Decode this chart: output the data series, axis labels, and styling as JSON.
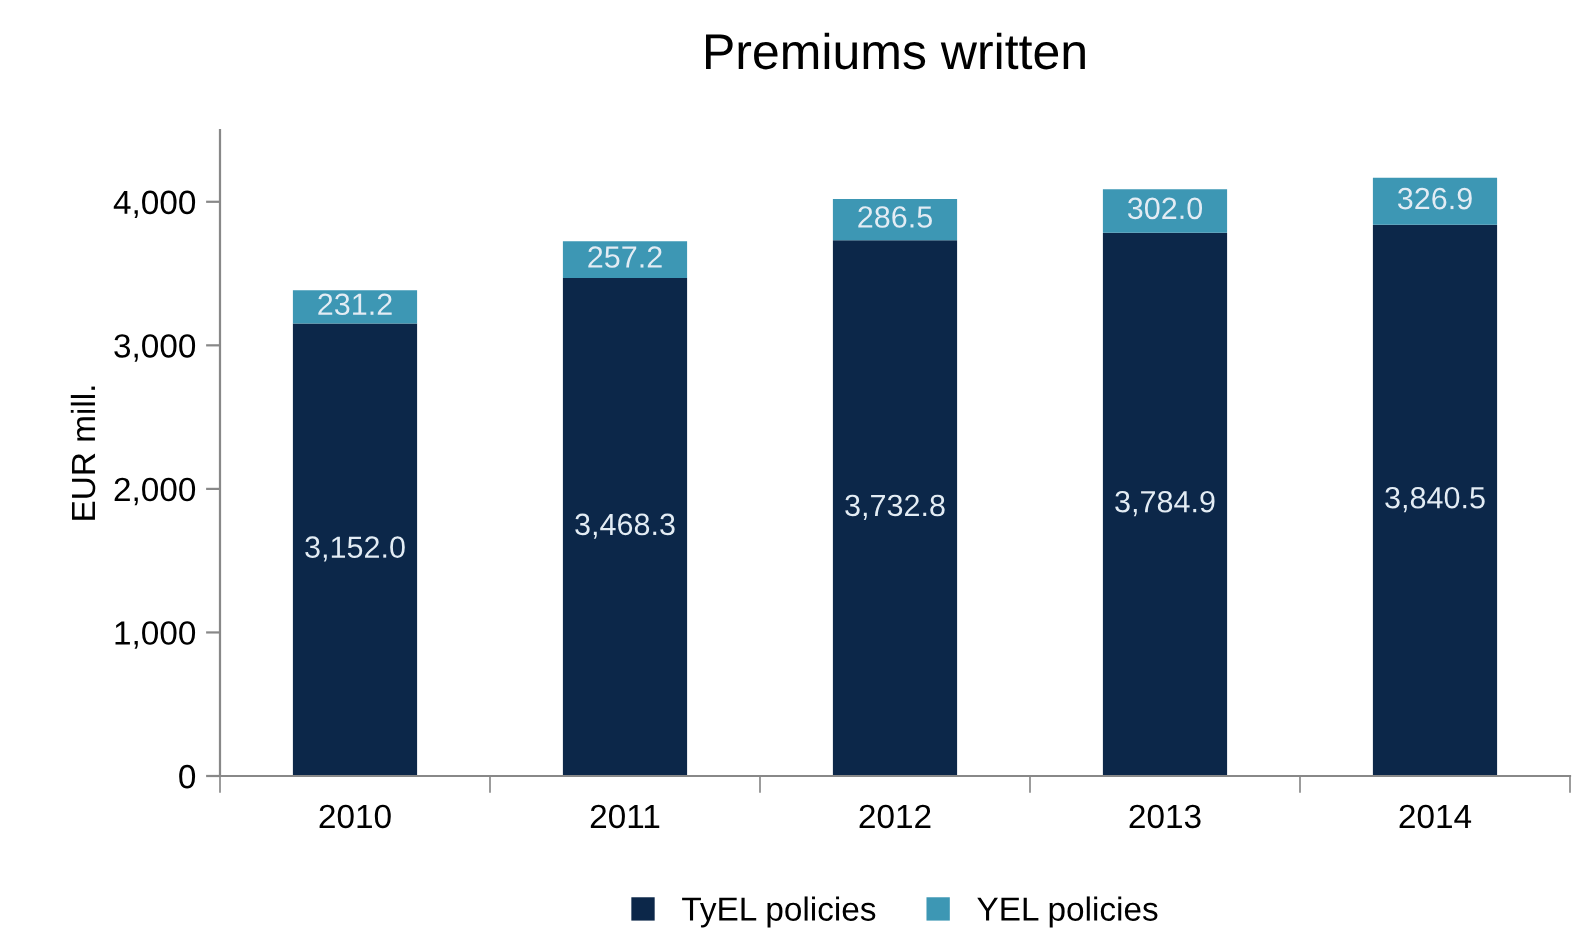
{
  "chart_data": {
    "type": "bar",
    "title": "Premiums written",
    "ylabel": "EUR mill.",
    "categories": [
      "2010",
      "2011",
      "2012",
      "2013",
      "2014"
    ],
    "stacked": true,
    "series": [
      {
        "name": "TyEL policies",
        "color": "#0c2749",
        "values": [
          3152.0,
          3468.3,
          3732.8,
          3784.9,
          3840.5
        ],
        "value_labels": [
          "3,152.0",
          "3,468.3",
          "3,732.8",
          "3,784.9",
          "3,840.5"
        ]
      },
      {
        "name": "YEL policies",
        "color": "#3d97b4",
        "values": [
          231.2,
          257.2,
          286.5,
          302.0,
          326.9
        ],
        "value_labels": [
          "231.2",
          "257.2",
          "286.5",
          "302.0",
          "326.9"
        ]
      }
    ],
    "ylim": [
      0,
      4500
    ],
    "yticks": [
      0,
      {
        "value": 1000,
        "label": "1,000"
      },
      {
        "value": 2000,
        "label": "2,000"
      },
      {
        "value": 3000,
        "label": "3,000"
      },
      {
        "value": 4000,
        "label": "4,000"
      }
    ],
    "grid": false,
    "legend": "bottom"
  }
}
